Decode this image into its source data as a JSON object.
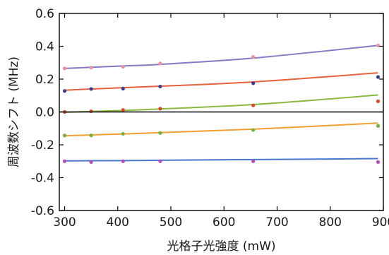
{
  "chart_data": {
    "type": "scatter",
    "title": "",
    "xlabel": "光格子光強度 (mW)",
    "ylabel": "周波数シフト (MHz)",
    "xlim": [
      290,
      900
    ],
    "ylim": [
      -0.6,
      0.6
    ],
    "xticks": [
      300,
      400,
      500,
      600,
      700,
      800,
      900
    ],
    "yticks": [
      -0.6,
      -0.4,
      -0.2,
      0.0,
      0.2,
      0.4,
      0.6
    ],
    "xtick_labels": [
      "300",
      "400",
      "500",
      "600",
      "700",
      "800",
      "900"
    ],
    "ytick_labels": [
      "-0.6",
      "-0.4",
      "-0.2",
      "0.0",
      "0.2",
      "0.4",
      "0.6"
    ],
    "zero_line": true,
    "grid": false,
    "legend": "none",
    "x": [
      300,
      350,
      410,
      480,
      655,
      890
    ],
    "series": [
      {
        "color": "#8878c3",
        "point_color": "#e890a8",
        "values": [
          0.265,
          0.27,
          0.275,
          0.295,
          0.335,
          0.405
        ],
        "fit": [
          0.265,
          0.272,
          0.28,
          0.29,
          0.328,
          0.405
        ]
      },
      {
        "color": "#e4623c",
        "point_color": "#3a3f8f",
        "values": [
          0.128,
          0.14,
          0.142,
          0.155,
          0.175,
          0.213
        ],
        "fit": [
          0.132,
          0.14,
          0.148,
          0.157,
          0.183,
          0.238
        ]
      },
      {
        "color": "#8ab840",
        "point_color": "#d44a2a",
        "values": [
          0.0,
          0.004,
          0.012,
          0.02,
          0.04,
          0.065
        ],
        "fit": [
          -0.002,
          0.003,
          0.009,
          0.018,
          0.045,
          0.103
        ]
      },
      {
        "color": "#f0a030",
        "point_color": "#78b040",
        "values": [
          -0.143,
          -0.143,
          -0.133,
          -0.128,
          -0.11,
          -0.085
        ],
        "fit": [
          -0.145,
          -0.14,
          -0.134,
          -0.126,
          -0.105,
          -0.068
        ]
      },
      {
        "color": "#4a78c8",
        "point_color": "#b050b8",
        "values": [
          -0.3,
          -0.305,
          -0.3,
          -0.3,
          -0.3,
          -0.305
        ],
        "fit": [
          -0.298,
          -0.297,
          -0.296,
          -0.294,
          -0.29,
          -0.284
        ]
      }
    ]
  }
}
